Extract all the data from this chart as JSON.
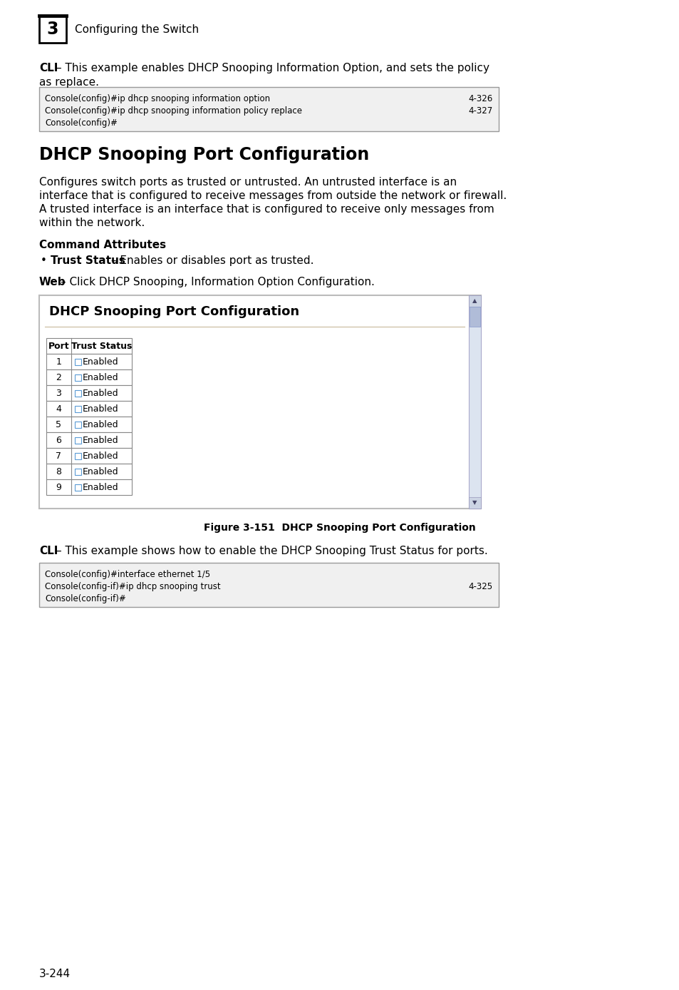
{
  "page_bg": "#ffffff",
  "page_number": "3-244",
  "chapter_number": "3",
  "chapter_title": "Configuring the Switch",
  "section_title": "DHCP Snooping Port Configuration",
  "code_block_1": [
    {
      "left": "Console(config)#ip dhcp snooping information option",
      "right": "4-326"
    },
    {
      "left": "Console(config)#ip dhcp snooping information policy replace",
      "right": "4-327"
    },
    {
      "left": "Console(config)#",
      "right": ""
    }
  ],
  "body_text_lines": [
    "Configures switch ports as trusted or untrusted. An untrusted interface is an",
    "interface that is configured to receive messages from outside the network or firewall.",
    "A trusted interface is an interface that is configured to receive only messages from",
    "within the network."
  ],
  "command_attributes_title": "Command Attributes",
  "figure_panel_title": "DHCP Snooping Port Configuration",
  "table_headers": [
    "Port",
    "Trust Status"
  ],
  "table_rows": [
    [
      "1",
      "Enabled"
    ],
    [
      "2",
      "Enabled"
    ],
    [
      "3",
      "Enabled"
    ],
    [
      "4",
      "Enabled"
    ],
    [
      "5",
      "Enabled"
    ],
    [
      "6",
      "Enabled"
    ],
    [
      "7",
      "Enabled"
    ],
    [
      "8",
      "Enabled"
    ],
    [
      "9",
      "Enabled"
    ]
  ],
  "figure_caption": "Figure 3-151  DHCP Snooping Port Configuration",
  "code_block_2": [
    {
      "left": "Console(config)#interface ethernet 1/5",
      "right": ""
    },
    {
      "left": "Console(config-if)#ip dhcp snooping trust",
      "right": "4-325"
    },
    {
      "left": "Console(config-if)#",
      "right": ""
    }
  ],
  "colors": {
    "bg": "#ffffff",
    "code_bg": "#f0f0f0",
    "code_border": "#999999",
    "table_border": "#888888",
    "panel_outer_border": "#bbbbbb",
    "panel_inner_line": "#c8b89a",
    "scrollbar_track": "#dce4f0",
    "scrollbar_thumb": "#b0bcd8",
    "scrollbar_btn": "#ccd4e4",
    "checkbox_border": "#5b9bd5"
  }
}
